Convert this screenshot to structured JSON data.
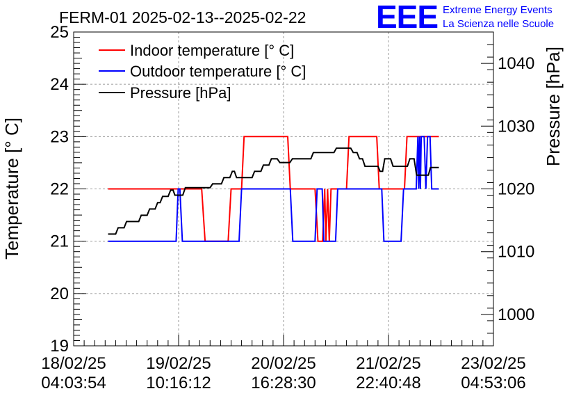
{
  "chart_data": {
    "type": "line",
    "title": "FERM-01 2025-02-13--2025-02-22",
    "logo": {
      "mark": "EEE",
      "line1": "Extreme Energy Events",
      "line2": "La Scienza nelle Scuole",
      "color": "#0000ff"
    },
    "ylabel": "Temperature [° C]",
    "y2label": "Pressure [hPa]",
    "ylim": [
      19,
      25
    ],
    "y2lim": [
      995,
      1045
    ],
    "yticks": [
      "19",
      "20",
      "21",
      "22",
      "23",
      "24",
      "25"
    ],
    "y2ticks": [
      "1000",
      "1010",
      "1020",
      "1030",
      "1040"
    ],
    "xlim": [
      0,
      100
    ],
    "xticks": [
      {
        "line1": "18/02/25",
        "line2": "04:03:54"
      },
      {
        "line1": "19/02/25",
        "line2": "10:16:12"
      },
      {
        "line1": "20/02/25",
        "line2": "16:28:30"
      },
      {
        "line1": "21/02/25",
        "line2": "22:40:48"
      },
      {
        "line1": "23/02/25",
        "line2": "04:53:06"
      }
    ],
    "grid": true,
    "legend_position": "top-left",
    "series": [
      {
        "name": "Indoor temperature [° C]",
        "axis": "left",
        "color": "#ff0000",
        "points": [
          [
            8.2,
            22
          ],
          [
            30.5,
            22
          ],
          [
            31.3,
            21
          ],
          [
            36.8,
            21
          ],
          [
            37.5,
            22
          ],
          [
            40.0,
            22
          ],
          [
            40.6,
            23
          ],
          [
            51.0,
            23
          ],
          [
            51.6,
            22
          ],
          [
            57.5,
            22
          ],
          [
            58.2,
            21
          ],
          [
            59.3,
            21
          ],
          [
            59.8,
            22
          ],
          [
            60.1,
            21
          ],
          [
            60.5,
            22
          ],
          [
            60.9,
            21
          ],
          [
            61.3,
            22
          ],
          [
            65.0,
            22
          ],
          [
            65.6,
            23
          ],
          [
            72.2,
            23
          ],
          [
            72.8,
            22
          ],
          [
            78.8,
            22
          ],
          [
            79.4,
            23
          ],
          [
            87.0,
            23
          ]
        ]
      },
      {
        "name": "Outdoor temperature [° C]",
        "axis": "left",
        "color": "#0000ff",
        "points": [
          [
            8.2,
            21
          ],
          [
            24.4,
            21
          ],
          [
            24.9,
            22
          ],
          [
            25.3,
            22
          ],
          [
            25.9,
            21
          ],
          [
            39.4,
            21
          ],
          [
            40.0,
            22
          ],
          [
            51.6,
            22
          ],
          [
            52.2,
            21
          ],
          [
            57.5,
            21
          ],
          [
            58.0,
            22
          ],
          [
            59.2,
            22
          ],
          [
            59.6,
            21
          ],
          [
            62.4,
            21
          ],
          [
            62.9,
            22
          ],
          [
            73.4,
            22
          ],
          [
            73.9,
            21
          ],
          [
            78.0,
            21
          ],
          [
            78.6,
            22
          ],
          [
            81.6,
            22
          ],
          [
            82.0,
            23
          ],
          [
            82.2,
            22
          ],
          [
            82.4,
            23
          ],
          [
            82.6,
            22
          ],
          [
            82.8,
            23
          ],
          [
            83.5,
            23
          ],
          [
            83.9,
            22
          ],
          [
            84.3,
            23
          ],
          [
            84.9,
            23
          ],
          [
            85.3,
            22
          ],
          [
            87.0,
            22
          ]
        ]
      },
      {
        "name": "Pressure [hPa]",
        "axis": "right",
        "color": "#000000",
        "points": [
          [
            8.2,
            1012.8
          ],
          [
            10.0,
            1012.8
          ],
          [
            10.6,
            1013.8
          ],
          [
            12.0,
            1013.8
          ],
          [
            12.6,
            1014.8
          ],
          [
            15.5,
            1014.8
          ],
          [
            16.1,
            1015.8
          ],
          [
            17.5,
            1015.8
          ],
          [
            18.1,
            1016.8
          ],
          [
            19.4,
            1016.8
          ],
          [
            20.0,
            1017.8
          ],
          [
            20.6,
            1017.8
          ],
          [
            21.2,
            1018.8
          ],
          [
            22.5,
            1018.8
          ],
          [
            23.1,
            1019.8
          ],
          [
            23.7,
            1019.8
          ],
          [
            24.1,
            1019.0
          ],
          [
            26.0,
            1019.0
          ],
          [
            26.6,
            1020.2
          ],
          [
            32.5,
            1020.2
          ],
          [
            33.1,
            1020.8
          ],
          [
            35.2,
            1020.8
          ],
          [
            35.8,
            1021.8
          ],
          [
            37.2,
            1021.8
          ],
          [
            37.8,
            1022.8
          ],
          [
            38.3,
            1022.8
          ],
          [
            38.8,
            1021.8
          ],
          [
            42.5,
            1021.8
          ],
          [
            43.1,
            1022.8
          ],
          [
            44.6,
            1022.8
          ],
          [
            45.2,
            1023.8
          ],
          [
            46.5,
            1023.8
          ],
          [
            47.1,
            1024.8
          ],
          [
            48.5,
            1024.8
          ],
          [
            49.1,
            1024.2
          ],
          [
            51.5,
            1024.2
          ],
          [
            52.1,
            1024.8
          ],
          [
            56.5,
            1024.8
          ],
          [
            57.1,
            1025.8
          ],
          [
            62.0,
            1025.8
          ],
          [
            62.6,
            1026.5
          ],
          [
            66.0,
            1026.5
          ],
          [
            66.6,
            1025.8
          ],
          [
            67.5,
            1025.8
          ],
          [
            68.1,
            1024.8
          ],
          [
            68.8,
            1024.8
          ],
          [
            69.4,
            1023.6
          ],
          [
            72.5,
            1023.6
          ],
          [
            73.0,
            1022.8
          ],
          [
            73.6,
            1022.8
          ],
          [
            74.1,
            1024.8
          ],
          [
            75.5,
            1024.8
          ],
          [
            76.1,
            1023.6
          ],
          [
            79.5,
            1023.6
          ],
          [
            80.1,
            1024.8
          ],
          [
            81.1,
            1024.8
          ],
          [
            81.7,
            1022.2
          ],
          [
            84.5,
            1022.2
          ],
          [
            85.0,
            1023.4
          ],
          [
            87.0,
            1023.4
          ]
        ]
      }
    ]
  }
}
